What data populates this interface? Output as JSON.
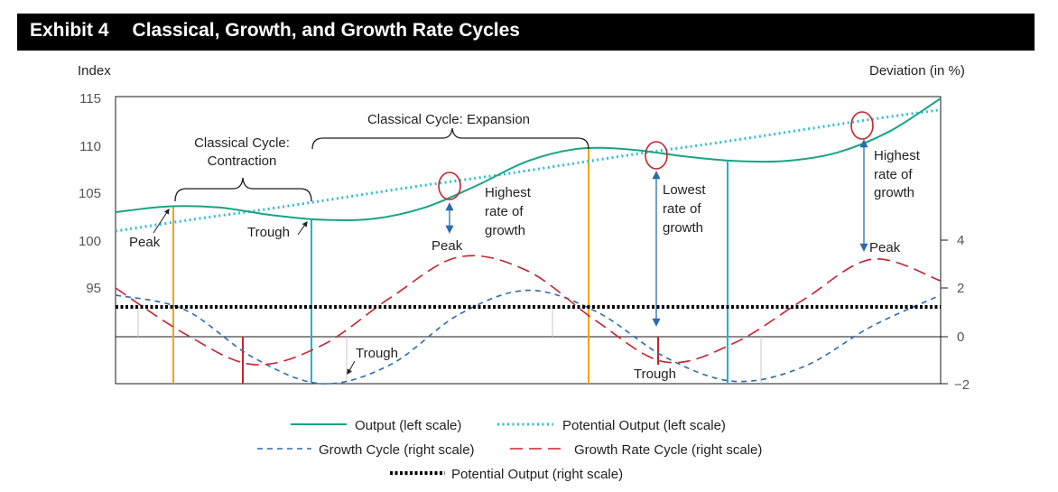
{
  "exhibit": {
    "label": "Exhibit 4",
    "title": "Classical, Growth, and Growth Rate Cycles"
  },
  "axes": {
    "left_title": "Index",
    "right_title": "Deviation (in %)",
    "left_ticks": [
      "115",
      "110",
      "105",
      "100",
      "95"
    ],
    "right_ticks": [
      "4",
      "2",
      "0",
      "−2"
    ]
  },
  "annotations": {
    "contraction_line1": "Classical Cycle:",
    "contraction_line2": "Contraction",
    "expansion": "Classical Cycle: Expansion",
    "peak_left": "Peak",
    "trough_left": "Trough",
    "highest1_l1": "Highest",
    "highest1_l2": "rate of",
    "highest1_l3": "growth",
    "peak_mid": "Peak",
    "lowest_l1": "Lowest",
    "lowest_l2": "rate of",
    "lowest_l3": "growth",
    "highest2_l1": "Highest",
    "highest2_l2": "rate of",
    "highest2_l3": "growth",
    "peak_right": "Peak",
    "trough_lower1": "Trough",
    "trough_lower2": "Trough"
  },
  "legend": {
    "output": "Output (left scale)",
    "potential_left": "Potential Output (left scale)",
    "growth_cycle": "Growth Cycle (right scale)",
    "growth_rate_cycle": "Growth Rate Cycle (right scale)",
    "potential_right": "Potential Output (right scale)"
  },
  "colors": {
    "output": "#1aa384",
    "potential": "#2ebfd6",
    "growth_cycle": "#2a6ab0",
    "growth_rate_cycle": "#c8232b",
    "peak_marker": "#f0a21b",
    "trough_marker": "#1bb3d9",
    "arrow": "#2a6ab0",
    "circle": "#c8232b"
  },
  "chart_data": {
    "type": "line",
    "left_ylim": [
      90,
      115
    ],
    "right_ylim": [
      -2,
      4
    ],
    "series": [
      {
        "name": "Output (left scale)",
        "axis": "left",
        "values": [
          103.0,
          103.6,
          103.5,
          102.7,
          102.2,
          102.3,
          103.5,
          105.8,
          108.4,
          109.7,
          109.6,
          108.9,
          108.4,
          108.4,
          109.3,
          111.5,
          115.0
        ]
      },
      {
        "name": "Potential Output (left scale)",
        "axis": "left",
        "values": [
          101.0,
          102.2,
          103.3,
          104.5,
          105.7,
          106.8,
          108.0,
          109.2,
          110.3,
          111.5,
          112.7,
          113.8
        ]
      },
      {
        "name": "Growth Cycle (right scale)",
        "axis": "right",
        "values": [
          1.7,
          1.1,
          -0.9,
          -2.0,
          -1.2,
          0.9,
          1.9,
          1.0,
          -0.9,
          -1.9,
          -1.3,
          0.4,
          1.7
        ]
      },
      {
        "name": "Growth Rate Cycle (right scale)",
        "axis": "right",
        "values": [
          2.0,
          0.1,
          -1.2,
          -0.4,
          1.6,
          3.3,
          2.7,
          0.6,
          -1.1,
          -0.3,
          1.5,
          3.2,
          2.3
        ]
      },
      {
        "name": "Potential Output (right scale)",
        "axis": "right",
        "values": [
          1.2,
          1.2
        ]
      }
    ]
  }
}
